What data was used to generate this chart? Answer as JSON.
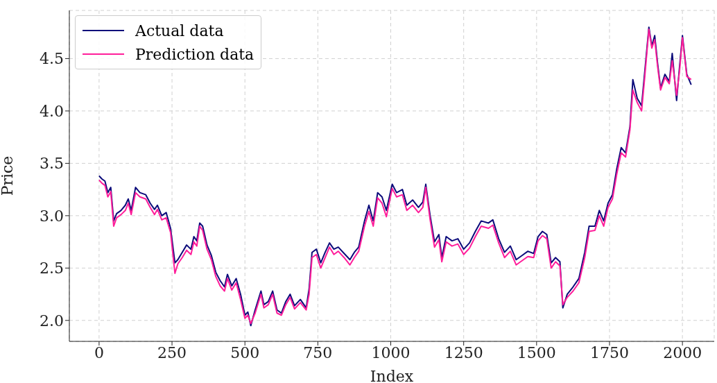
{
  "chart_data": {
    "type": "line",
    "xlabel": "Index",
    "ylabel": "Price",
    "xlim": [
      -102,
      2109
    ],
    "ylim": [
      1.8,
      4.96
    ],
    "xticks": [
      0,
      250,
      500,
      750,
      1000,
      1250,
      1500,
      1750,
      2000
    ],
    "yticks": [
      {
        "value": 2,
        "label": "2.0"
      },
      2.5,
      {
        "value": 3,
        "label": "3.0"
      },
      3.5,
      {
        "value": 4,
        "label": "4.0"
      },
      4.5
    ],
    "grid": true,
    "legend": "top left",
    "line_style": "solid",
    "marker": "none",
    "series": [
      {
        "name": "Actual data",
        "color": "#0b0b7a",
        "x": [
          0,
          10,
          20,
          30,
          40,
          50,
          60,
          75,
          90,
          100,
          110,
          125,
          140,
          160,
          175,
          190,
          200,
          215,
          230,
          245,
          260,
          270,
          285,
          300,
          315,
          325,
          335,
          345,
          355,
          370,
          385,
          400,
          415,
          430,
          440,
          455,
          470,
          485,
          500,
          510,
          520,
          535,
          555,
          565,
          580,
          595,
          610,
          625,
          640,
          655,
          670,
          690,
          710,
          720,
          730,
          745,
          760,
          775,
          790,
          805,
          820,
          840,
          860,
          875,
          890,
          910,
          925,
          940,
          955,
          970,
          985,
          1005,
          1020,
          1040,
          1055,
          1075,
          1095,
          1110,
          1120,
          1135,
          1150,
          1165,
          1175,
          1190,
          1210,
          1230,
          1250,
          1270,
          1290,
          1310,
          1335,
          1350,
          1370,
          1390,
          1410,
          1430,
          1450,
          1470,
          1490,
          1505,
          1520,
          1535,
          1550,
          1565,
          1580,
          1590,
          1605,
          1625,
          1645,
          1665,
          1680,
          1700,
          1715,
          1730,
          1745,
          1760,
          1775,
          1790,
          1805,
          1820,
          1830,
          1845,
          1860,
          1870,
          1885,
          1895,
          1905,
          1915,
          1925,
          1940,
          1955,
          1965,
          1980,
          1990,
          2000,
          2015,
          2030
        ],
        "values": [
          3.38,
          3.35,
          3.33,
          3.22,
          3.27,
          2.95,
          3.02,
          3.05,
          3.1,
          3.16,
          3.05,
          3.27,
          3.22,
          3.2,
          3.12,
          3.06,
          3.1,
          3.0,
          3.03,
          2.88,
          2.55,
          2.58,
          2.65,
          2.72,
          2.68,
          2.8,
          2.76,
          2.93,
          2.9,
          2.72,
          2.62,
          2.46,
          2.38,
          2.32,
          2.44,
          2.33,
          2.4,
          2.25,
          2.05,
          2.08,
          1.95,
          2.1,
          2.28,
          2.15,
          2.18,
          2.28,
          2.1,
          2.07,
          2.18,
          2.25,
          2.14,
          2.2,
          2.12,
          2.3,
          2.65,
          2.68,
          2.55,
          2.65,
          2.74,
          2.68,
          2.7,
          2.64,
          2.58,
          2.65,
          2.7,
          2.95,
          3.1,
          2.95,
          3.22,
          3.18,
          3.05,
          3.3,
          3.22,
          3.25,
          3.1,
          3.15,
          3.08,
          3.13,
          3.3,
          3.0,
          2.75,
          2.82,
          2.6,
          2.8,
          2.76,
          2.78,
          2.68,
          2.74,
          2.85,
          2.95,
          2.93,
          2.96,
          2.78,
          2.65,
          2.71,
          2.58,
          2.62,
          2.66,
          2.64,
          2.8,
          2.85,
          2.82,
          2.55,
          2.6,
          2.56,
          2.12,
          2.25,
          2.32,
          2.4,
          2.65,
          2.9,
          2.9,
          3.05,
          2.95,
          3.12,
          3.2,
          3.45,
          3.65,
          3.6,
          3.85,
          4.3,
          4.12,
          4.05,
          4.35,
          4.8,
          4.62,
          4.72,
          4.45,
          4.22,
          4.35,
          4.28,
          4.55,
          4.1,
          4.42,
          4.72,
          4.35,
          4.25
        ]
      },
      {
        "name": "Prediction data",
        "color": "#ff1e9a",
        "x": [
          0,
          10,
          20,
          30,
          40,
          50,
          60,
          75,
          90,
          100,
          110,
          125,
          140,
          160,
          175,
          190,
          200,
          215,
          230,
          245,
          260,
          270,
          285,
          300,
          315,
          325,
          335,
          345,
          355,
          370,
          385,
          400,
          415,
          430,
          440,
          455,
          470,
          485,
          500,
          510,
          520,
          535,
          555,
          565,
          580,
          595,
          610,
          625,
          640,
          655,
          670,
          690,
          710,
          720,
          730,
          745,
          760,
          775,
          790,
          805,
          820,
          840,
          860,
          875,
          890,
          910,
          925,
          940,
          955,
          970,
          985,
          1005,
          1020,
          1040,
          1055,
          1075,
          1095,
          1110,
          1120,
          1135,
          1150,
          1165,
          1175,
          1190,
          1210,
          1230,
          1250,
          1270,
          1290,
          1310,
          1335,
          1350,
          1370,
          1390,
          1410,
          1430,
          1450,
          1470,
          1490,
          1505,
          1520,
          1535,
          1550,
          1565,
          1580,
          1590,
          1605,
          1625,
          1645,
          1665,
          1680,
          1700,
          1715,
          1730,
          1745,
          1760,
          1775,
          1790,
          1805,
          1820,
          1830,
          1845,
          1860,
          1870,
          1885,
          1895,
          1905,
          1915,
          1925,
          1940,
          1955,
          1965,
          1980,
          1990,
          2000,
          2015,
          2030
        ],
        "values": [
          3.34,
          3.31,
          3.29,
          3.18,
          3.23,
          2.9,
          2.98,
          3.01,
          3.05,
          3.12,
          3.01,
          3.22,
          3.18,
          3.16,
          3.08,
          3.01,
          3.06,
          2.96,
          2.98,
          2.84,
          2.45,
          2.54,
          2.6,
          2.67,
          2.63,
          2.75,
          2.71,
          2.9,
          2.86,
          2.68,
          2.58,
          2.42,
          2.33,
          2.28,
          2.4,
          2.29,
          2.36,
          2.2,
          2.02,
          2.05,
          1.97,
          2.07,
          2.25,
          2.12,
          2.15,
          2.25,
          2.07,
          2.05,
          2.15,
          2.22,
          2.11,
          2.17,
          2.1,
          2.25,
          2.6,
          2.63,
          2.5,
          2.6,
          2.7,
          2.63,
          2.66,
          2.6,
          2.53,
          2.6,
          2.66,
          2.9,
          3.04,
          2.9,
          3.17,
          3.12,
          2.99,
          3.26,
          3.18,
          3.2,
          3.05,
          3.1,
          3.03,
          3.08,
          3.27,
          2.96,
          2.7,
          2.77,
          2.56,
          2.75,
          2.71,
          2.73,
          2.63,
          2.69,
          2.8,
          2.9,
          2.88,
          2.91,
          2.74,
          2.6,
          2.66,
          2.53,
          2.57,
          2.61,
          2.6,
          2.76,
          2.81,
          2.78,
          2.5,
          2.56,
          2.52,
          2.15,
          2.22,
          2.28,
          2.36,
          2.6,
          2.85,
          2.86,
          3.0,
          2.9,
          3.08,
          3.16,
          3.4,
          3.6,
          3.56,
          3.82,
          4.2,
          4.08,
          4.0,
          4.3,
          4.78,
          4.6,
          4.68,
          4.42,
          4.2,
          4.32,
          4.26,
          4.48,
          4.15,
          4.38,
          4.7,
          4.33,
          4.3
        ]
      }
    ]
  }
}
